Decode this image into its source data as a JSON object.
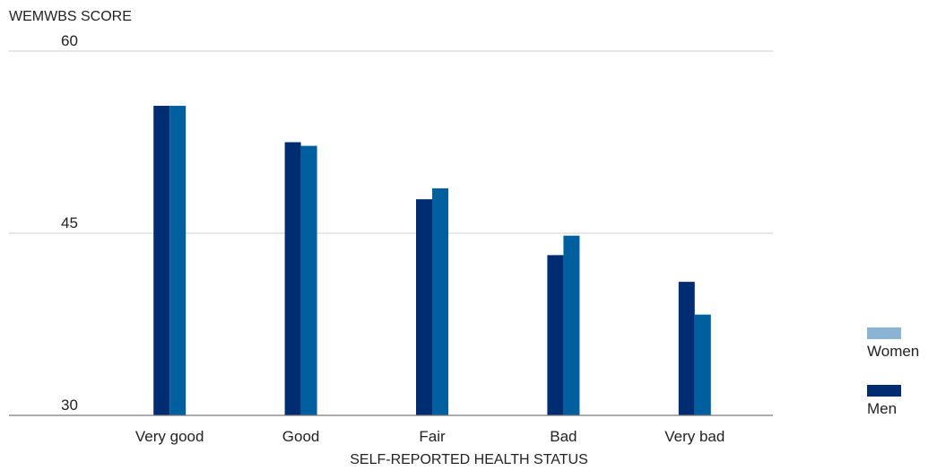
{
  "chart_data": {
    "type": "bar",
    "ylabel": "WEMWBS SCORE",
    "xlabel": "SELF-REPORTED HEALTH STATUS",
    "categories": [
      "Very good",
      "Good",
      "Fair",
      "Bad",
      "Very bad"
    ],
    "series": [
      {
        "name": "Men",
        "values": [
          55.5,
          52.5,
          47.8,
          43.2,
          41.0
        ]
      },
      {
        "name": "Women",
        "values": [
          55.5,
          52.2,
          48.7,
          44.8,
          38.3
        ]
      }
    ],
    "ylim": [
      30,
      60
    ],
    "yticks": [
      30,
      45,
      60
    ],
    "grid": true,
    "legend": [
      {
        "label": "Women",
        "color": "#8ab4d3"
      },
      {
        "label": "Men",
        "color": "#002d72"
      }
    ],
    "legend_position": "right",
    "colors": {
      "men": "#002d72",
      "women": "#005f9e"
    }
  }
}
